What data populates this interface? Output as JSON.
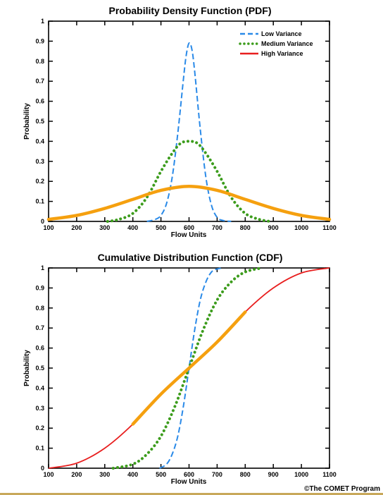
{
  "colors": {
    "low": "#2a8ae8",
    "medium": "#3c9c1c",
    "high": "#e81e1e",
    "highlight": "#f5a00f",
    "bottom_rule": "#c8a85a"
  },
  "credit": "©The COMET Program",
  "chart_data": [
    {
      "type": "line",
      "title": "Probability Density Function (PDF)",
      "xlabel": "Flow Units",
      "ylabel": "Probability",
      "xlim": [
        100,
        1100
      ],
      "ylim": [
        0,
        1
      ],
      "xticks": [
        "100",
        "200",
        "300",
        "400",
        "500",
        "600",
        "700",
        "800",
        "900",
        "1000",
        "1100"
      ],
      "yticks": [
        "0",
        "0.1",
        "0.2",
        "0.3",
        "0.4",
        "0.5",
        "0.6",
        "0.7",
        "0.8",
        "0.9",
        "1"
      ],
      "legend": {
        "placement": "top-right",
        "entries": [
          "Low Variance",
          "Medium Variance",
          "High Variance"
        ]
      },
      "series": [
        {
          "name": "Low Variance",
          "style": "dashed",
          "x": [
            450,
            480,
            500,
            520,
            540,
            560,
            580,
            590,
            600,
            610,
            620,
            640,
            660,
            680,
            700,
            720,
            750
          ],
          "y": [
            0.0,
            0.01,
            0.03,
            0.09,
            0.22,
            0.44,
            0.71,
            0.83,
            0.89,
            0.86,
            0.75,
            0.46,
            0.22,
            0.08,
            0.02,
            0.005,
            0.0
          ]
        },
        {
          "name": "Medium Variance",
          "style": "dotted",
          "x": [
            310,
            350,
            400,
            450,
            500,
            540,
            570,
            600,
            630,
            660,
            700,
            750,
            800,
            850,
            890
          ],
          "y": [
            0.0,
            0.01,
            0.04,
            0.12,
            0.25,
            0.34,
            0.39,
            0.4,
            0.39,
            0.34,
            0.25,
            0.12,
            0.04,
            0.01,
            0.0
          ]
        },
        {
          "name": "High Variance",
          "style": "solid",
          "x": [
            100,
            200,
            300,
            400,
            500,
            600,
            700,
            800,
            900,
            1000,
            1100
          ],
          "y": [
            0.01,
            0.03,
            0.065,
            0.11,
            0.155,
            0.175,
            0.155,
            0.11,
            0.065,
            0.03,
            0.01
          ]
        }
      ]
    },
    {
      "type": "line",
      "title": "Cumulative Distribution Function (CDF)",
      "xlabel": "Flow Units",
      "ylabel": "Probability",
      "xlim": [
        100,
        1100
      ],
      "ylim": [
        0,
        1
      ],
      "xticks": [
        "100",
        "200",
        "300",
        "400",
        "500",
        "600",
        "700",
        "800",
        "900",
        "1000",
        "1100"
      ],
      "yticks": [
        "0",
        "0.1",
        "0.2",
        "0.3",
        "0.4",
        "0.5",
        "0.6",
        "0.7",
        "0.8",
        "0.9",
        "1"
      ],
      "series": [
        {
          "name": "Low Variance",
          "style": "dashed",
          "x": [
            495,
            520,
            540,
            560,
            580,
            600,
            620,
            640,
            660,
            680,
            700,
            720
          ],
          "y": [
            0.0,
            0.02,
            0.07,
            0.16,
            0.31,
            0.5,
            0.69,
            0.84,
            0.93,
            0.98,
            0.995,
            1.0
          ]
        },
        {
          "name": "Medium Variance",
          "style": "dotted",
          "x": [
            330,
            400,
            450,
            500,
            550,
            600,
            650,
            700,
            750,
            800,
            860
          ],
          "y": [
            0.0,
            0.02,
            0.07,
            0.16,
            0.31,
            0.5,
            0.69,
            0.84,
            0.93,
            0.98,
            1.0
          ]
        },
        {
          "name": "High Variance",
          "style": "solid",
          "x": [
            100,
            200,
            300,
            400,
            500,
            600,
            700,
            800,
            900,
            1000,
            1100
          ],
          "y": [
            0.0,
            0.025,
            0.1,
            0.22,
            0.37,
            0.5,
            0.63,
            0.78,
            0.9,
            0.975,
            1.0
          ]
        }
      ]
    }
  ]
}
